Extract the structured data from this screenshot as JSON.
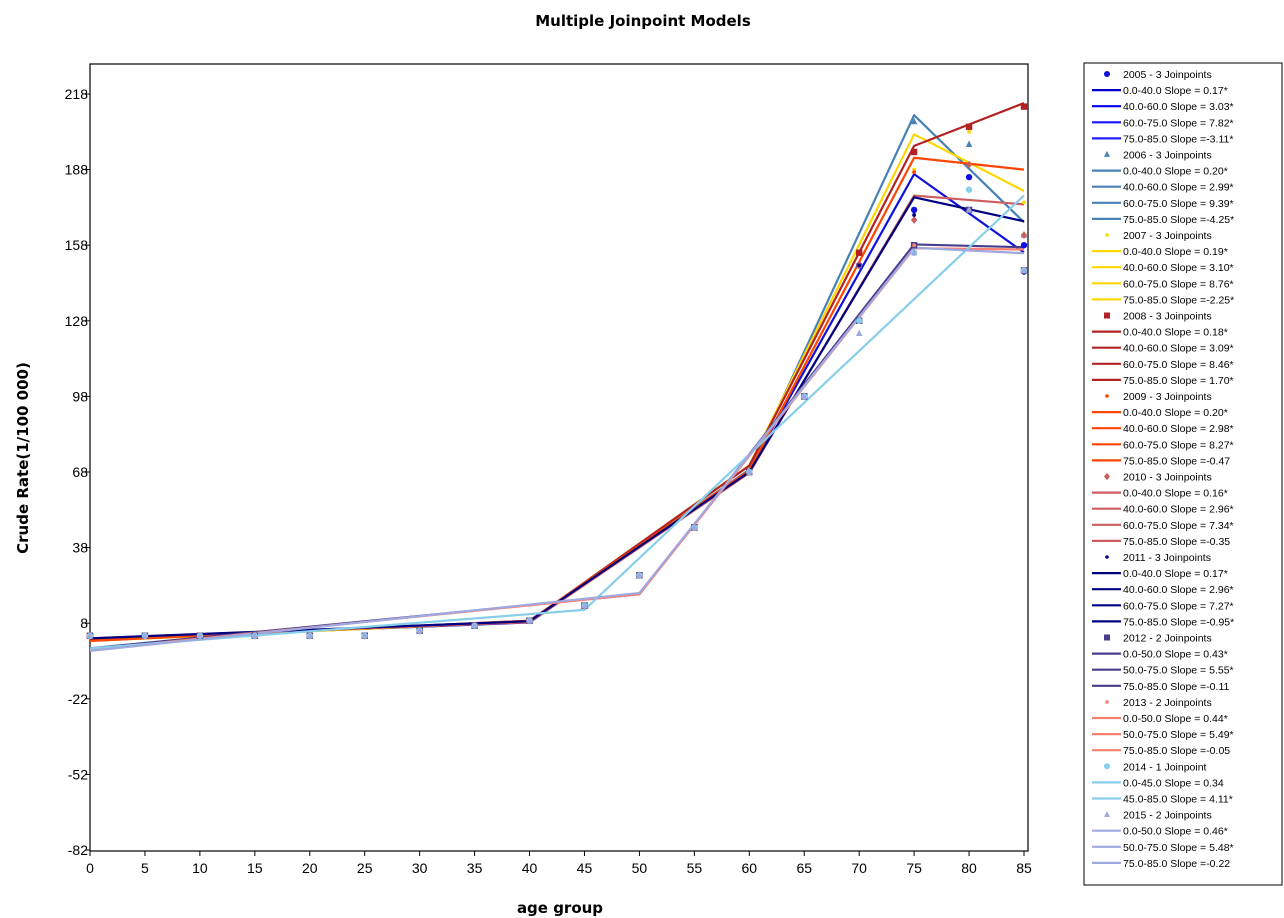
{
  "chart_data": {
    "type": "line",
    "title": "Multiple Joinpoint Models",
    "xlabel": "age group",
    "ylabel": "Crude Rate(1/100 000)",
    "xlim": [
      0,
      85
    ],
    "ylim": [
      -82,
      228
    ],
    "x_ticks": [
      0,
      5,
      10,
      15,
      20,
      25,
      30,
      35,
      40,
      45,
      50,
      55,
      60,
      65,
      70,
      75,
      80,
      85
    ],
    "y_ticks": [
      -82,
      -52,
      -22,
      8,
      38,
      68,
      98,
      128,
      158,
      188,
      218
    ],
    "x_tick_labels": [
      "0",
      "5",
      "10",
      "15",
      "20",
      "25",
      "30",
      "35",
      "40",
      "45",
      "50",
      "55",
      "60",
      "65",
      "70",
      "75",
      "80",
      "85"
    ],
    "y_tick_labels": [
      "-82",
      "-52",
      "-22",
      "8",
      "38",
      "68",
      "98",
      "128",
      "158",
      "188",
      "218"
    ],
    "grid": false,
    "legend_position": "right",
    "series": [
      {
        "name": "2005 - 3 Joinpoints",
        "marker": "circle",
        "color": "#1010e0",
        "points_x": [
          0,
          5,
          10,
          15,
          20,
          25,
          30,
          35,
          40,
          45,
          50,
          55,
          60,
          65,
          70,
          75,
          80,
          85
        ],
        "points_y": [
          3,
          3,
          3,
          3,
          3,
          3,
          5,
          7,
          9,
          15,
          27,
          46,
          68,
          98,
          150,
          172,
          185,
          158
        ],
        "fit": [
          {
            "label": "0.0-40.0 Slope = 0.17*",
            "color": "#0000cc"
          },
          {
            "label": "40.0-60.0 Slope = 3.03*",
            "color": "#0000ee"
          },
          {
            "label": "60.0-75.0 Slope = 7.82*",
            "color": "#1515ff"
          },
          {
            "label": "75.0-85.0 Slope =-3.11*",
            "color": "#2020ff"
          }
        ],
        "fit_x": [
          0,
          40,
          60,
          75,
          85
        ],
        "fit_y": [
          1.5,
          8.3,
          68.9,
          186.2,
          155.1
        ]
      },
      {
        "name": "2006 - 3 Joinpoints",
        "marker": "triangle",
        "color": "#4682b4",
        "points_x": [
          0,
          5,
          10,
          15,
          20,
          25,
          30,
          35,
          40,
          45,
          50,
          55,
          60,
          65,
          70,
          75,
          80,
          85
        ],
        "points_y": [
          3,
          3,
          3,
          3,
          3,
          3,
          5,
          7,
          9,
          15,
          27,
          46,
          68,
          98,
          150,
          207,
          198,
          162
        ],
        "fit": [
          {
            "label": "0.0-40.0 Slope = 0.20*",
            "color": "#4682b4"
          },
          {
            "label": "40.0-60.0 Slope = 2.99*",
            "color": "#4682b4"
          },
          {
            "label": "60.0-75.0 Slope = 9.39*",
            "color": "#4682b4"
          },
          {
            "label": "75.0-85.0 Slope =-4.25*",
            "color": "#4682b4"
          }
        ],
        "fit_x": [
          0,
          40,
          60,
          75,
          85
        ],
        "fit_y": [
          1,
          9,
          68.8,
          209.6,
          167.1
        ]
      },
      {
        "name": "2007 - 3 Joinpoints",
        "marker": "dot",
        "color": "#ffd700",
        "points_x": [
          0,
          5,
          10,
          15,
          20,
          25,
          30,
          35,
          40,
          45,
          50,
          55,
          60,
          65,
          70,
          75,
          80,
          85
        ],
        "points_y": [
          3,
          3,
          3,
          3,
          3,
          3,
          5,
          7,
          9,
          15,
          27,
          46,
          68,
          98,
          150,
          188,
          203,
          175
        ],
        "fit": [
          {
            "label": "0.0-40.0 Slope = 0.19*",
            "color": "#ffd700"
          },
          {
            "label": "40.0-60.0 Slope = 3.10*",
            "color": "#ffd700"
          },
          {
            "label": "60.0-75.0 Slope = 8.76*",
            "color": "#ffd700"
          },
          {
            "label": "75.0-85.0 Slope =-2.25*",
            "color": "#ffd700"
          }
        ],
        "fit_x": [
          0,
          40,
          60,
          75,
          85
        ],
        "fit_y": [
          1,
          8.6,
          70.6,
          202,
          179.5
        ]
      },
      {
        "name": "2008 - 3 Joinpoints",
        "marker": "square",
        "color": "#b22222",
        "points_x": [
          0,
          5,
          10,
          15,
          20,
          25,
          30,
          35,
          40,
          45,
          50,
          55,
          60,
          65,
          70,
          75,
          80,
          85
        ],
        "points_y": [
          3,
          3,
          3,
          3,
          3,
          3,
          5,
          7,
          9,
          15,
          27,
          46,
          68,
          98,
          155,
          195,
          205,
          213
        ],
        "fit": [
          {
            "label": "0.0-40.0 Slope = 0.18*",
            "color": "#b22222"
          },
          {
            "label": "40.0-60.0 Slope = 3.09*",
            "color": "#b22222"
          },
          {
            "label": "60.0-75.0 Slope = 8.46*",
            "color": "#b22222"
          },
          {
            "label": "75.0-85.0 Slope = 1.70*",
            "color": "#b22222"
          }
        ],
        "fit_x": [
          0,
          40,
          60,
          75,
          85
        ],
        "fit_y": [
          1.5,
          8.7,
          70.5,
          197.4,
          214.4
        ]
      },
      {
        "name": "2009 - 3 Joinpoints",
        "marker": "dot",
        "color": "#ff4500",
        "points_x": [
          0,
          5,
          10,
          15,
          20,
          25,
          30,
          35,
          40,
          45,
          50,
          55,
          60,
          65,
          70,
          75,
          80,
          85
        ],
        "points_y": [
          3,
          3,
          3,
          3,
          3,
          3,
          5,
          7,
          9,
          15,
          27,
          46,
          68,
          98,
          150,
          187,
          190,
          162
        ],
        "fit": [
          {
            "label": "0.0-40.0 Slope = 0.20*",
            "color": "#ff4500"
          },
          {
            "label": "40.0-60.0 Slope = 2.98*",
            "color": "#ff4500"
          },
          {
            "label": "60.0-75.0 Slope = 8.27*",
            "color": "#ff4500"
          },
          {
            "label": "75.0-85.0 Slope =-0.47",
            "color": "#ff4500"
          }
        ],
        "fit_x": [
          0,
          40,
          60,
          75,
          85
        ],
        "fit_y": [
          1,
          9,
          68.6,
          192.7,
          188
        ]
      },
      {
        "name": "2010 - 3 Joinpoints",
        "marker": "diamond",
        "color": "#cd5c5c",
        "points_x": [
          0,
          5,
          10,
          15,
          20,
          25,
          30,
          35,
          40,
          45,
          50,
          55,
          60,
          65,
          70,
          75,
          80,
          85
        ],
        "points_y": [
          3,
          3,
          3,
          3,
          3,
          3,
          5,
          7,
          9,
          15,
          27,
          46,
          68,
          98,
          150,
          168,
          190,
          162
        ],
        "fit": [
          {
            "label": "0.0-40.0 Slope = 0.16*",
            "color": "#cd5c5c"
          },
          {
            "label": "40.0-60.0 Slope = 2.96*",
            "color": "#cd5c5c"
          },
          {
            "label": "60.0-75.0 Slope = 7.34*",
            "color": "#cd5c5c"
          },
          {
            "label": "75.0-85.0 Slope =-0.35",
            "color": "#cd5c5c"
          }
        ],
        "fit_x": [
          0,
          40,
          60,
          75,
          85
        ],
        "fit_y": [
          2,
          8.4,
          67.6,
          177.7,
          174.2
        ]
      },
      {
        "name": "2011 - 3 Joinpoints",
        "marker": "dot",
        "color": "#000080",
        "points_x": [
          0,
          5,
          10,
          15,
          20,
          25,
          30,
          35,
          40,
          45,
          50,
          55,
          60,
          65,
          70,
          75,
          80,
          85
        ],
        "points_y": [
          3,
          3,
          3,
          3,
          3,
          3,
          5,
          7,
          9,
          15,
          27,
          46,
          68,
          98,
          150,
          170,
          172,
          147
        ],
        "fit": [
          {
            "label": "0.0-40.0 Slope = 0.17*",
            "color": "#000080"
          },
          {
            "label": "40.0-60.0 Slope = 2.96*",
            "color": "#000080"
          },
          {
            "label": "60.0-75.0 Slope = 7.27*",
            "color": "#000080"
          },
          {
            "label": "75.0-85.0 Slope =-0.95*",
            "color": "#000080"
          }
        ],
        "fit_x": [
          0,
          40,
          60,
          75,
          85
        ],
        "fit_y": [
          2,
          8.8,
          68,
          177,
          167.5
        ]
      },
      {
        "name": "2012 - 2 Joinpoints",
        "marker": "square",
        "color": "#483d8b",
        "points_x": [
          0,
          5,
          10,
          15,
          20,
          25,
          30,
          35,
          40,
          45,
          50,
          55,
          60,
          65,
          70,
          75,
          80,
          85
        ],
        "points_y": [
          3,
          3,
          3,
          3,
          3,
          3,
          5,
          7,
          9,
          15,
          27,
          46,
          68,
          98,
          128,
          158,
          172,
          148
        ],
        "fit": [
          {
            "label": "0.0-50.0 Slope = 0.43*",
            "color": "#483d8b"
          },
          {
            "label": "50.0-75.0 Slope = 5.55*",
            "color": "#483d8b"
          },
          {
            "label": "75.0-85.0 Slope =-0.11",
            "color": "#483d8b"
          }
        ],
        "fit_x": [
          0,
          50,
          75,
          85
        ],
        "fit_y": [
          -2,
          19.5,
          158.3,
          157.2
        ]
      },
      {
        "name": "2013 - 2 Joinpoints",
        "marker": "dot",
        "color": "#fa8072",
        "points_x": [
          0,
          5,
          10,
          15,
          20,
          25,
          30,
          35,
          40,
          45,
          50,
          55,
          60,
          65,
          70,
          75,
          80,
          85
        ],
        "points_y": [
          3,
          3,
          3,
          3,
          3,
          3,
          5,
          7,
          9,
          15,
          27,
          46,
          68,
          98,
          128,
          158,
          172,
          148
        ],
        "fit": [
          {
            "label": "0.0-50.0 Slope = 0.44*",
            "color": "#fa8072"
          },
          {
            "label": "50.0-75.0 Slope = 5.49*",
            "color": "#fa8072"
          },
          {
            "label": "75.0-85.0 Slope =-0.05",
            "color": "#fa8072"
          }
        ],
        "fit_x": [
          0,
          50,
          75,
          85
        ],
        "fit_y": [
          -2.5,
          19.5,
          156.8,
          156.3
        ]
      },
      {
        "name": "2014 - 1 Joinpoint",
        "marker": "circle",
        "color": "#87ceeb",
        "points_x": [
          0,
          5,
          10,
          15,
          20,
          25,
          30,
          35,
          40,
          45,
          50,
          55,
          60,
          65,
          70,
          75,
          80,
          85
        ],
        "points_y": [
          3,
          3,
          3,
          3,
          3,
          3,
          5,
          7,
          9,
          15,
          27,
          46,
          68,
          98,
          128,
          155,
          180,
          148
        ],
        "fit": [
          {
            "label": "0.0-45.0 Slope = 0.34",
            "color": "#87ceeb"
          },
          {
            "label": "45.0-85.0 Slope = 4.11*",
            "color": "#87ceeb"
          }
        ],
        "fit_x": [
          0,
          45,
          85
        ],
        "fit_y": [
          -2,
          13.3,
          177.7
        ]
      },
      {
        "name": "2015 - 2 Joinpoints",
        "marker": "triangle",
        "color": "#a0a8e0",
        "points_x": [
          0,
          5,
          10,
          15,
          20,
          25,
          30,
          35,
          40,
          45,
          50,
          55,
          60,
          65,
          70,
          75,
          80,
          85
        ],
        "points_y": [
          3,
          3,
          3,
          3,
          3,
          3,
          5,
          7,
          9,
          15,
          27,
          46,
          68,
          98,
          123,
          155,
          172,
          148
        ],
        "fit": [
          {
            "label": "0.0-50.0 Slope = 0.46*",
            "color": "#a0a8e0"
          },
          {
            "label": "50.0-75.0 Slope = 5.48*",
            "color": "#a0a8e0"
          },
          {
            "label": "75.0-85.0 Slope =-0.22",
            "color": "#a0a8e0"
          }
        ],
        "fit_x": [
          0,
          50,
          75,
          85
        ],
        "fit_y": [
          -3,
          20,
          157,
          154.8
        ]
      }
    ]
  }
}
